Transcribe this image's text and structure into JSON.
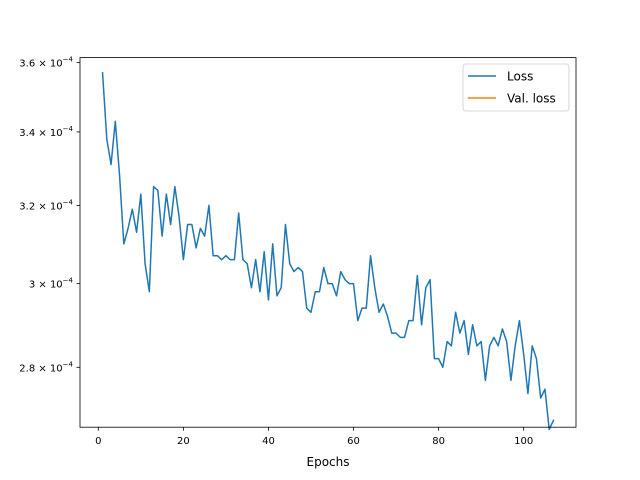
{
  "chart_data": {
    "type": "line",
    "title": "",
    "xlabel": "Epochs",
    "ylabel": "",
    "xlim": [
      -4.3,
      112.3
    ],
    "ylim": [
      0.0002665,
      0.0003615
    ],
    "y_scale": "log",
    "grid": false,
    "legend_position": "top-right",
    "x_ticks": [
      {
        "value": 0,
        "label": "0"
      },
      {
        "value": 20,
        "label": "20"
      },
      {
        "value": 40,
        "label": "40"
      },
      {
        "value": 60,
        "label": "60"
      },
      {
        "value": 80,
        "label": "80"
      },
      {
        "value": 100,
        "label": "100"
      }
    ],
    "y_ticks": [
      {
        "value": 0.00028,
        "mantissa": "2.8",
        "label": "2.8 × 10^−4"
      },
      {
        "value": 0.0003,
        "mantissa": "3",
        "label": "3 × 10^−4"
      },
      {
        "value": 0.00032,
        "mantissa": "3.2",
        "label": "3.2 × 10^−4"
      },
      {
        "value": 0.00034,
        "mantissa": "3.4",
        "label": "3.4 × 10^−4"
      },
      {
        "value": 0.00036,
        "mantissa": "3.6",
        "label": "3.6 × 10^−4"
      }
    ],
    "y_tick_base": "10",
    "y_tick_exponent": "−4",
    "series": [
      {
        "name": "Loss",
        "color": "#1f77b4",
        "x": [
          1,
          2,
          3,
          4,
          5,
          6,
          7,
          8,
          9,
          10,
          11,
          12,
          13,
          14,
          15,
          16,
          17,
          18,
          19,
          20,
          21,
          22,
          23,
          24,
          25,
          26,
          27,
          28,
          29,
          30,
          31,
          32,
          33,
          34,
          35,
          36,
          37,
          38,
          39,
          40,
          41,
          42,
          43,
          44,
          45,
          46,
          47,
          48,
          49,
          50,
          51,
          52,
          53,
          54,
          55,
          56,
          57,
          58,
          59,
          60,
          61,
          62,
          63,
          64,
          65,
          66,
          67,
          68,
          69,
          70,
          71,
          72,
          73,
          74,
          75,
          76,
          77,
          78,
          79,
          80,
          81,
          82,
          83,
          84,
          85,
          86,
          87,
          88,
          89,
          90,
          91,
          92,
          93,
          94,
          95,
          96,
          97,
          98,
          99,
          100,
          101,
          102,
          103,
          104,
          105,
          106,
          107
        ],
        "y": [
          0.000357,
          0.000338,
          0.000331,
          0.000343,
          0.000328,
          0.00031,
          0.000314,
          0.000319,
          0.000313,
          0.000323,
          0.000305,
          0.000298,
          0.000325,
          0.000324,
          0.000312,
          0.000323,
          0.000315,
          0.000325,
          0.000317,
          0.000306,
          0.000315,
          0.000315,
          0.000309,
          0.000314,
          0.000312,
          0.00032,
          0.000307,
          0.000307,
          0.000306,
          0.000307,
          0.000306,
          0.000306,
          0.000318,
          0.000306,
          0.000305,
          0.000299,
          0.000306,
          0.000298,
          0.000308,
          0.000296,
          0.00031,
          0.000297,
          0.000299,
          0.000315,
          0.000305,
          0.000303,
          0.000304,
          0.000303,
          0.000294,
          0.000293,
          0.000298,
          0.000298,
          0.000304,
          0.0003,
          0.0003,
          0.000297,
          0.000303,
          0.000301,
          0.0003,
          0.0003,
          0.000291,
          0.000294,
          0.000294,
          0.000307,
          0.000299,
          0.000293,
          0.000295,
          0.000292,
          0.000288,
          0.000288,
          0.000287,
          0.000287,
          0.000291,
          0.000291,
          0.000302,
          0.00029,
          0.000299,
          0.000301,
          0.000282,
          0.000282,
          0.00028,
          0.000286,
          0.000285,
          0.000293,
          0.000288,
          0.000291,
          0.000283,
          0.00029,
          0.000285,
          0.000286,
          0.000277,
          0.000285,
          0.000287,
          0.000285,
          0.000289,
          0.000286,
          0.000277,
          0.000285,
          0.000291,
          0.000283,
          0.000274,
          0.000285,
          0.000282,
          0.000273,
          0.000275,
          0.000266,
          0.000268
        ]
      },
      {
        "name": "Val. loss",
        "color": "#ff7f0e",
        "x": [],
        "y": []
      }
    ]
  }
}
